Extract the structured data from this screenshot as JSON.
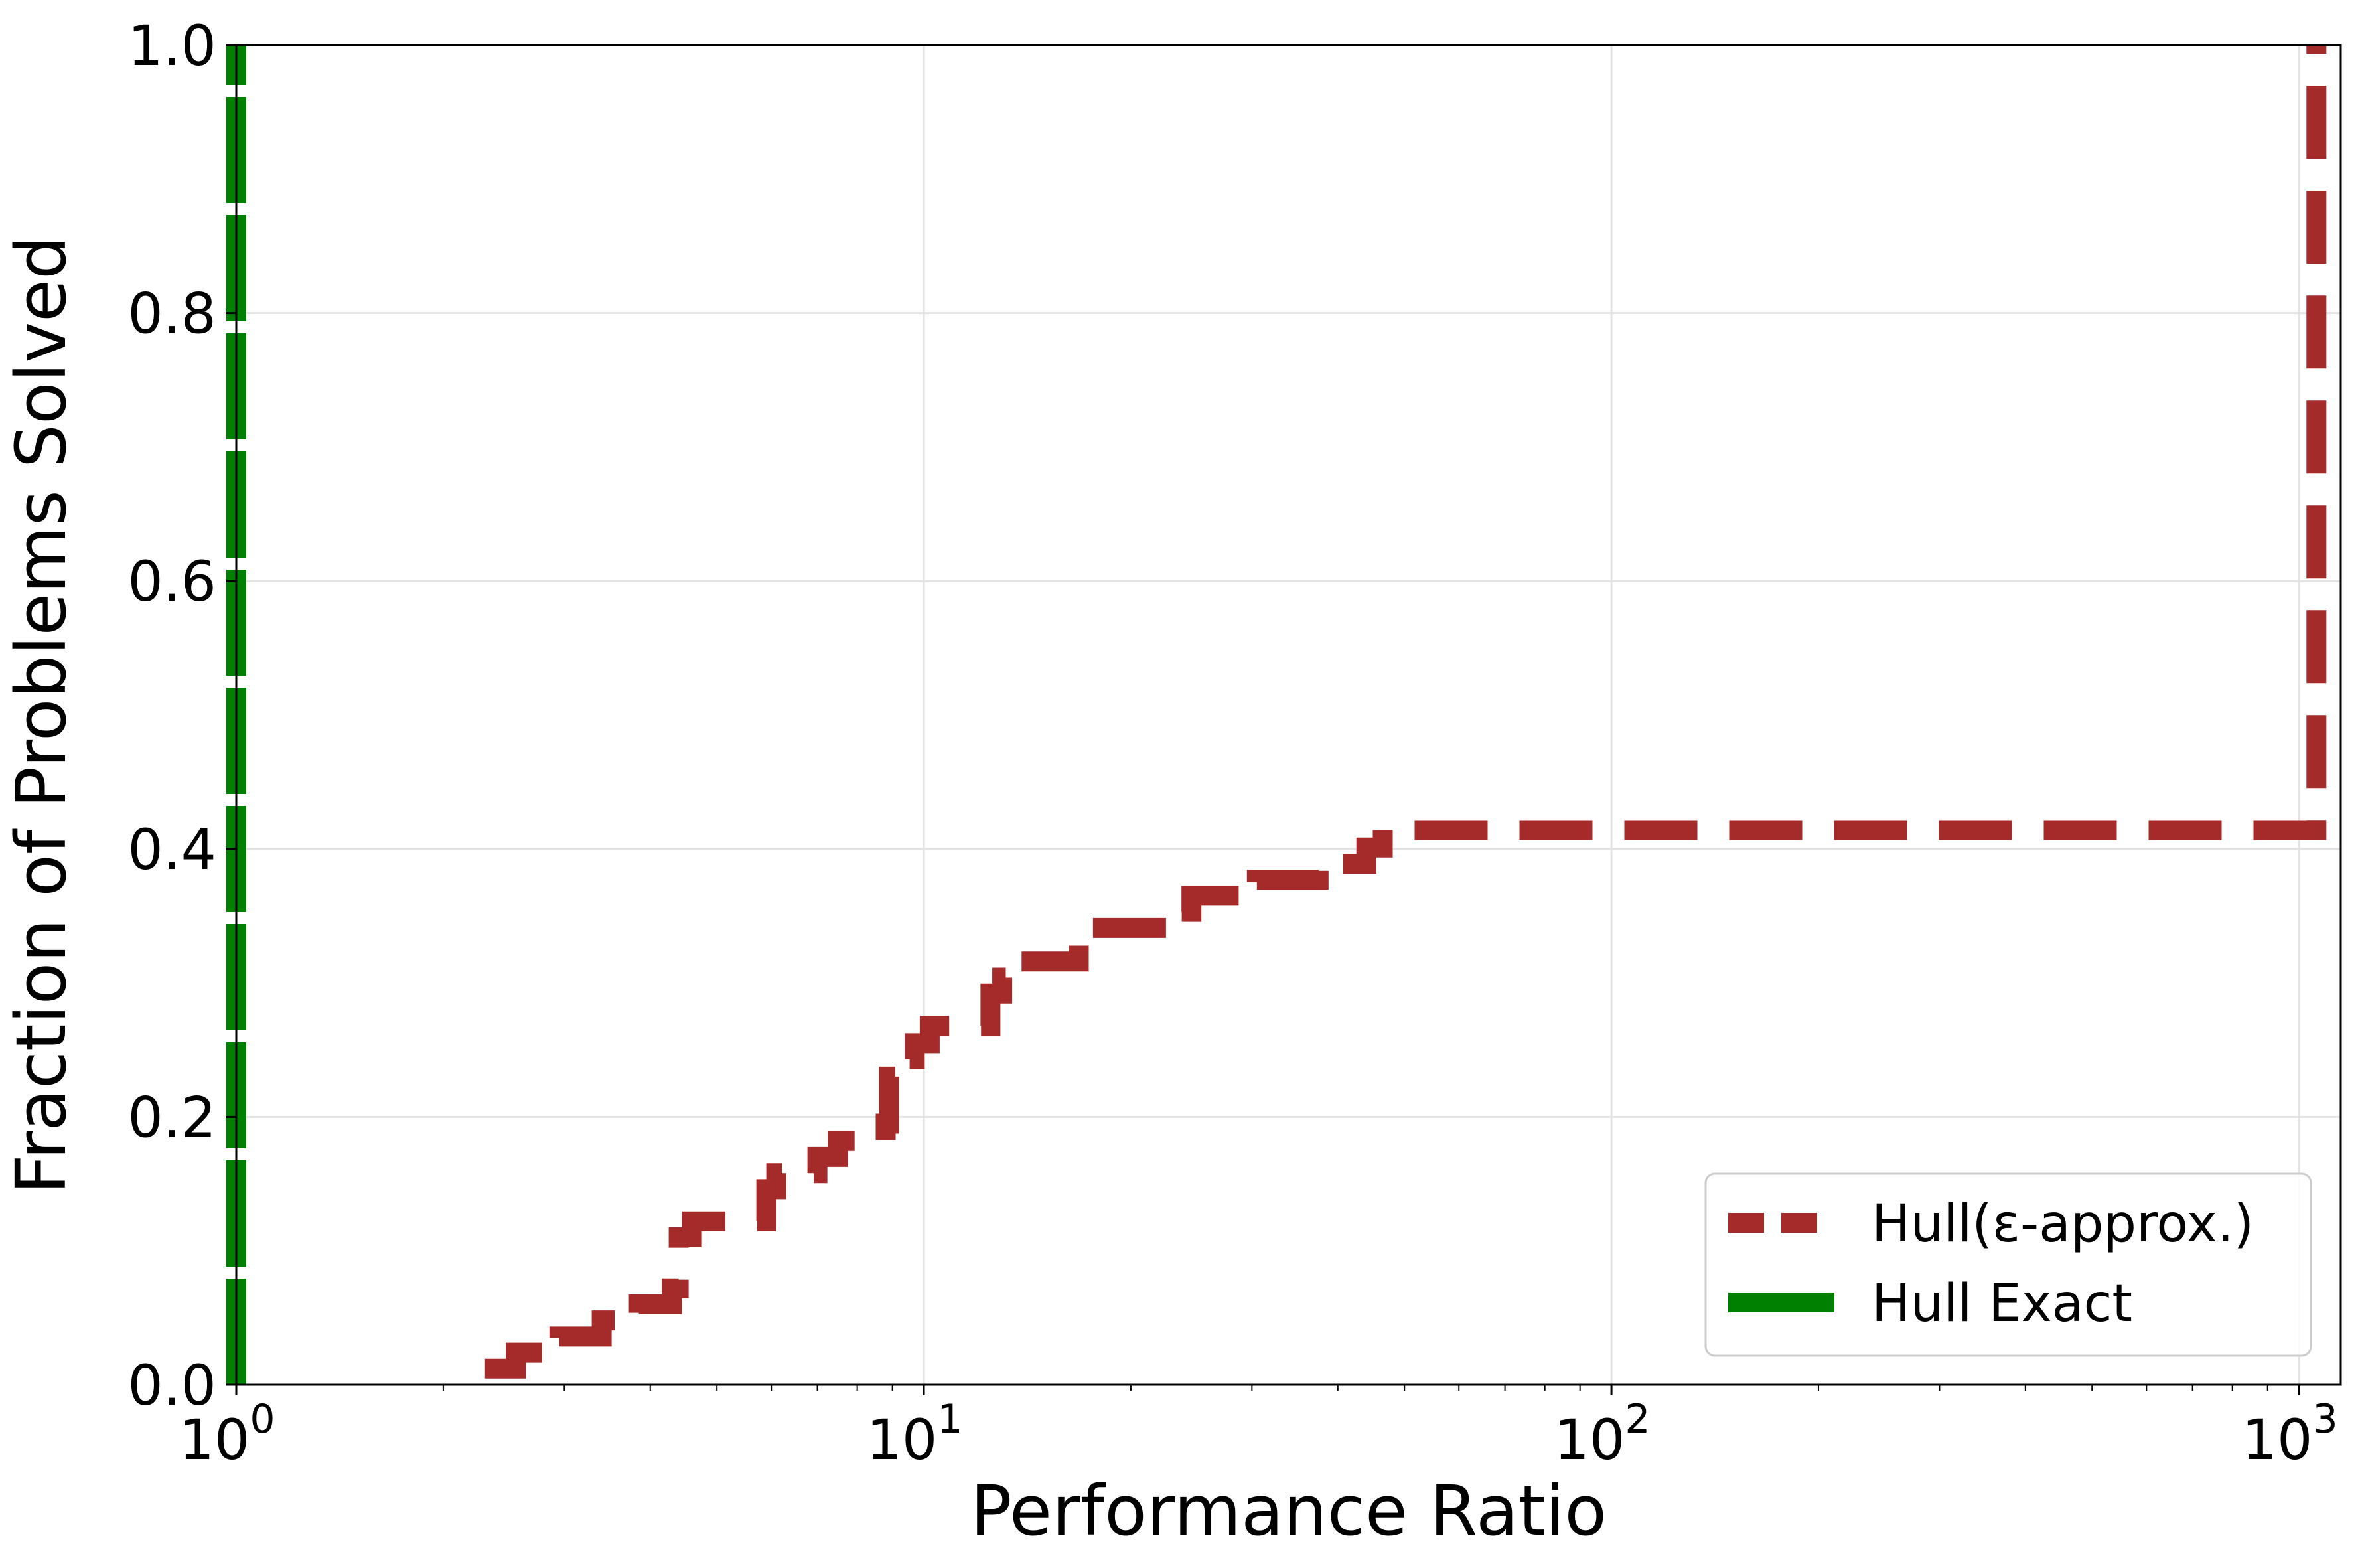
{
  "chart_data": {
    "type": "line",
    "xlabel": "Performance Ratio",
    "ylabel": "Fraction of Problems Solved",
    "xscale": "log",
    "xlim": [
      1,
      1150
    ],
    "ylim": [
      0,
      1
    ],
    "grid": true,
    "legend_position": "lower right",
    "x_ticks": [
      {
        "value": 1,
        "base": "10",
        "exp": "0"
      },
      {
        "value": 10,
        "base": "10",
        "exp": "1"
      },
      {
        "value": 100,
        "base": "10",
        "exp": "2"
      },
      {
        "value": 1000,
        "base": "10",
        "exp": "3"
      }
    ],
    "y_ticks": [
      {
        "value": 0.0,
        "label": "0.0"
      },
      {
        "value": 0.2,
        "label": "0.2"
      },
      {
        "value": 0.4,
        "label": "0.4"
      },
      {
        "value": 0.6,
        "label": "0.6"
      },
      {
        "value": 0.8,
        "label": "0.8"
      },
      {
        "value": 1.0,
        "label": "1.0"
      }
    ],
    "series": [
      {
        "name": "Hull(ε-approx.)",
        "color": "#a52a2a",
        "style": "dashed",
        "points": [
          [
            2.3,
            0.012
          ],
          [
            2.55,
            0.012
          ],
          [
            2.55,
            0.024
          ],
          [
            2.95,
            0.024
          ],
          [
            2.95,
            0.036
          ],
          [
            3.4,
            0.036
          ],
          [
            3.4,
            0.048
          ],
          [
            3.85,
            0.048
          ],
          [
            3.85,
            0.06
          ],
          [
            4.3,
            0.06
          ],
          [
            4.3,
            0.072
          ],
          [
            4.4,
            0.072
          ],
          [
            4.4,
            0.11
          ],
          [
            4.6,
            0.11
          ],
          [
            4.6,
            0.122
          ],
          [
            5.9,
            0.122
          ],
          [
            5.9,
            0.146
          ],
          [
            6.1,
            0.146
          ],
          [
            6.1,
            0.158
          ],
          [
            7.0,
            0.158
          ],
          [
            7.0,
            0.17
          ],
          [
            7.5,
            0.17
          ],
          [
            7.5,
            0.182
          ],
          [
            8.8,
            0.182
          ],
          [
            8.8,
            0.195
          ],
          [
            8.9,
            0.195
          ],
          [
            8.9,
            0.23
          ],
          [
            9.1,
            0.23
          ],
          [
            9.1,
            0.243
          ],
          [
            9.7,
            0.243
          ],
          [
            9.7,
            0.255
          ],
          [
            10.2,
            0.255
          ],
          [
            10.2,
            0.268
          ],
          [
            12.5,
            0.268
          ],
          [
            12.5,
            0.292
          ],
          [
            13.0,
            0.292
          ],
          [
            13.0,
            0.304
          ],
          [
            13.8,
            0.304
          ],
          [
            13.8,
            0.316
          ],
          [
            16.8,
            0.316
          ],
          [
            16.8,
            0.329
          ],
          [
            17.5,
            0.329
          ],
          [
            17.5,
            0.341
          ],
          [
            23.5,
            0.341
          ],
          [
            23.5,
            0.353
          ],
          [
            24.5,
            0.353
          ],
          [
            24.5,
            0.365
          ],
          [
            30.5,
            0.365
          ],
          [
            30.5,
            0.377
          ],
          [
            37.5,
            0.377
          ],
          [
            37.5,
            0.389
          ],
          [
            44.0,
            0.389
          ],
          [
            44.0,
            0.401
          ],
          [
            46.5,
            0.401
          ],
          [
            46.5,
            0.414
          ],
          [
            1060,
            0.414
          ],
          [
            1060,
            1.0
          ]
        ]
      },
      {
        "name": "Hull Exact",
        "color": "#008000",
        "style": "solid",
        "points": [
          [
            1.0,
            0.0
          ],
          [
            1.0,
            1.0
          ]
        ]
      }
    ]
  }
}
